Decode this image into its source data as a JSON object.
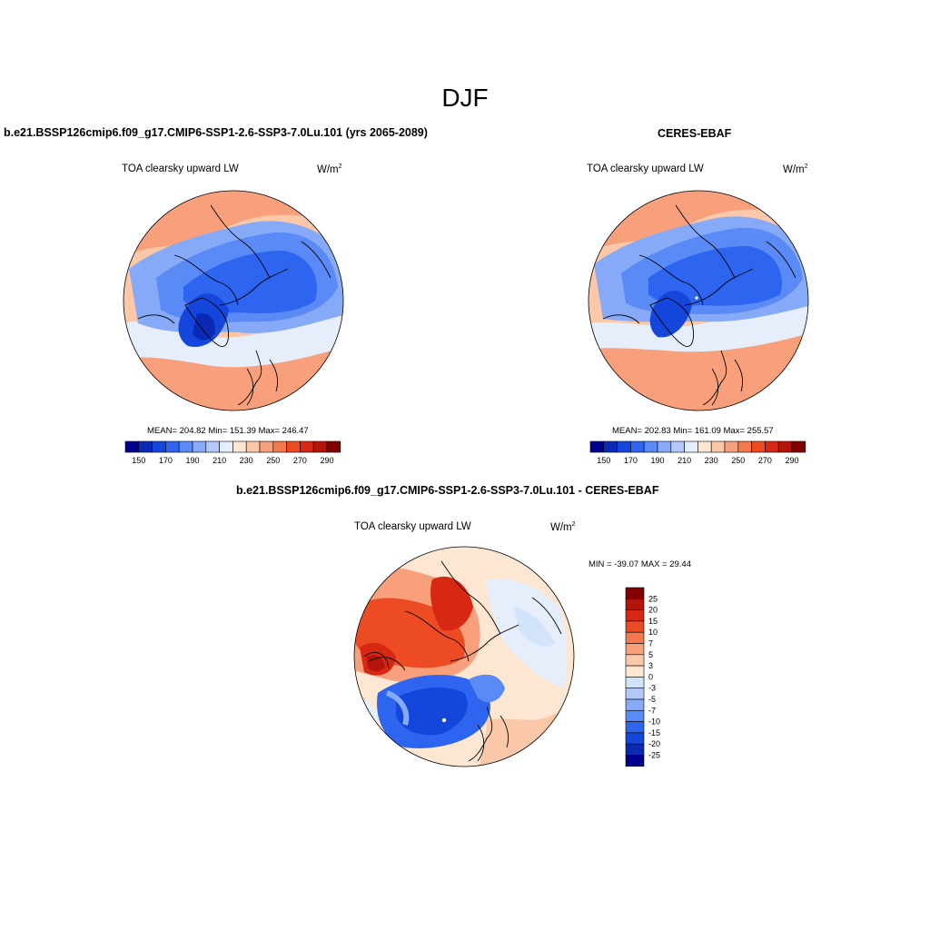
{
  "figure": {
    "season": "DJF"
  },
  "panels": [
    {
      "id": "model",
      "case_title": "b.e21.BSSP126cmip6.f09_g17.CMIP6-SSP1-2.6-SSP3-7.0Lu.101 (yrs 2065-2089)",
      "variable": "TOA clearsky upward LW",
      "units_base": "W/m",
      "units_exp": "2",
      "stats_text": "MEAN= 204.82  Min= 151.39  Max= 246.47",
      "stats": {
        "mean": 204.82,
        "min": 151.39,
        "max": 246.47
      }
    },
    {
      "id": "obs",
      "case_title": "CERES-EBAF",
      "variable": "TOA clearsky upward LW",
      "units_base": "W/m",
      "units_exp": "2",
      "stats_text": "MEAN= 202.83  Min= 161.09  Max= 255.57",
      "stats": {
        "mean": 202.83,
        "min": 161.09,
        "max": 255.57
      }
    },
    {
      "id": "diff",
      "case_title": "b.e21.BSSP126cmip6.f09_g17.CMIP6-SSP1-2.6-SSP3-7.0Lu.101 - CERES-EBAF",
      "variable": "TOA clearsky upward LW",
      "units_base": "W/m",
      "units_exp": "2",
      "stats_text": "MIN = -39.07 MAX =  29.44",
      "stats": {
        "min": -39.07,
        "max": 29.44
      }
    }
  ],
  "colorbars": {
    "absolute": {
      "orientation": "horizontal",
      "colors": [
        "#00008c",
        "#0a2ab4",
        "#1446dc",
        "#2d64f0",
        "#5a8af5",
        "#87aaf8",
        "#b4c8fa",
        "#e6eefc",
        "#fde6d2",
        "#fbc8aa",
        "#f8a07c",
        "#f57850",
        "#ec4b23",
        "#d72814",
        "#b4140a",
        "#820000"
      ],
      "tick_labels": [
        "150",
        "170",
        "190",
        "210",
        "230",
        "250",
        "270",
        "290"
      ]
    },
    "difference": {
      "orientation": "vertical",
      "colors": [
        "#820000",
        "#b4140a",
        "#d72814",
        "#ec4b23",
        "#f57850",
        "#f8a07c",
        "#fbc8aa",
        "#fde6d2",
        "#d2e4fa",
        "#b4c8fa",
        "#87aaf8",
        "#5a8af5",
        "#2d64f0",
        "#1446dc",
        "#0a2ab4",
        "#00008c"
      ],
      "tick_labels": [
        "25",
        "20",
        "15",
        "10",
        "7",
        "5",
        "3",
        "0",
        "-3",
        "-5",
        "-7",
        "-10",
        "-15",
        "-20",
        "-25"
      ]
    }
  },
  "map": {
    "projection": "north polar stereographic",
    "colors": {
      "ocean_warm": "#fbc8aa",
      "ocean_warmer": "#f8a07c",
      "mid": "#e6eefc",
      "cold1": "#87aaf8",
      "cold2": "#5a8af5",
      "cold3": "#2d64f0",
      "cold4": "#1446dc",
      "cold5": "#0a2ab4",
      "diff_pos1": "#f8a07c",
      "diff_pos2": "#ec4b23",
      "diff_pos3": "#d72814",
      "diff_pos4": "#b4140a",
      "diff_neg1": "#5a8af5",
      "diff_neg2": "#2d64f0",
      "diff_neg3": "#1446dc",
      "diff_neutral": "#fde6d2"
    }
  }
}
